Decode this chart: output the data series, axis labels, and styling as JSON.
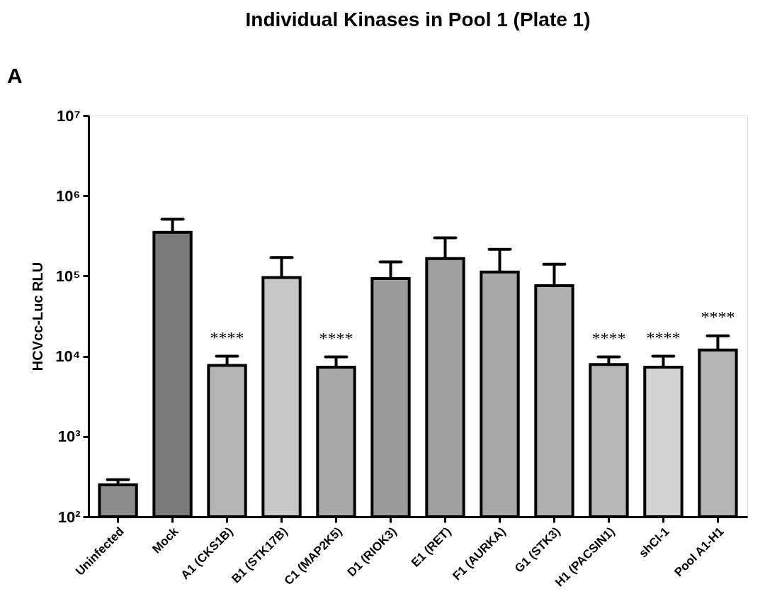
{
  "chart_data": {
    "type": "bar",
    "title": "Individual Kinases in Pool 1 (Plate 1)",
    "ylabel": "HCVcc-Luc RLU",
    "categories": [
      "Uninfected",
      "Mock",
      "A1 (CKS1B)",
      "B1 (STK17B)",
      "C1 (MAP2K5)",
      "D1 (RIOK3)",
      "E1 (RET)",
      "F1 (AURKA)",
      "G1 (STK3)",
      "H1 (PACSIN1)",
      "shCI-1",
      "Pool A1-H1"
    ],
    "values": [
      250,
      350000,
      7700,
      96000,
      7300,
      93000,
      165000,
      112000,
      76000,
      7900,
      7300,
      12000
    ],
    "errors": [
      [
        250,
        290
      ],
      [
        350000,
        510000
      ],
      [
        7700,
        10000
      ],
      [
        96000,
        170000
      ],
      [
        7300,
        9800
      ],
      [
        93000,
        150000
      ],
      [
        165000,
        300000
      ],
      [
        112000,
        215000
      ],
      [
        76000,
        140000
      ],
      [
        7900,
        9800
      ],
      [
        7300,
        10000
      ],
      [
        12000,
        18000
      ]
    ],
    "colors": [
      "#8c8c8c",
      "#7a7a7a",
      "#b4b4b4",
      "#c8c8c8",
      "#a8a8a8",
      "#9a9a9a",
      "#a0a0a0",
      "#a8a8a8",
      "#b0b0b0",
      "#b8b8b8",
      "#d2d2d2",
      "#b4b4b4"
    ],
    "log": true,
    "ylim": [
      100,
      10000000
    ],
    "yticks": [
      {
        "value": 100,
        "label": "10²"
      },
      {
        "value": 1000,
        "label": "10³"
      },
      {
        "value": 10000,
        "label": "10⁴"
      },
      {
        "value": 100000,
        "label": "10⁵"
      },
      {
        "value": 1000000,
        "label": "10⁶"
      },
      {
        "value": 10000000,
        "label": "10⁷"
      }
    ],
    "grid": false,
    "value_labels": [
      null,
      null,
      "****",
      null,
      "****",
      null,
      null,
      null,
      null,
      "****",
      "****",
      "****"
    ],
    "annotations": [
      "A"
    ]
  }
}
